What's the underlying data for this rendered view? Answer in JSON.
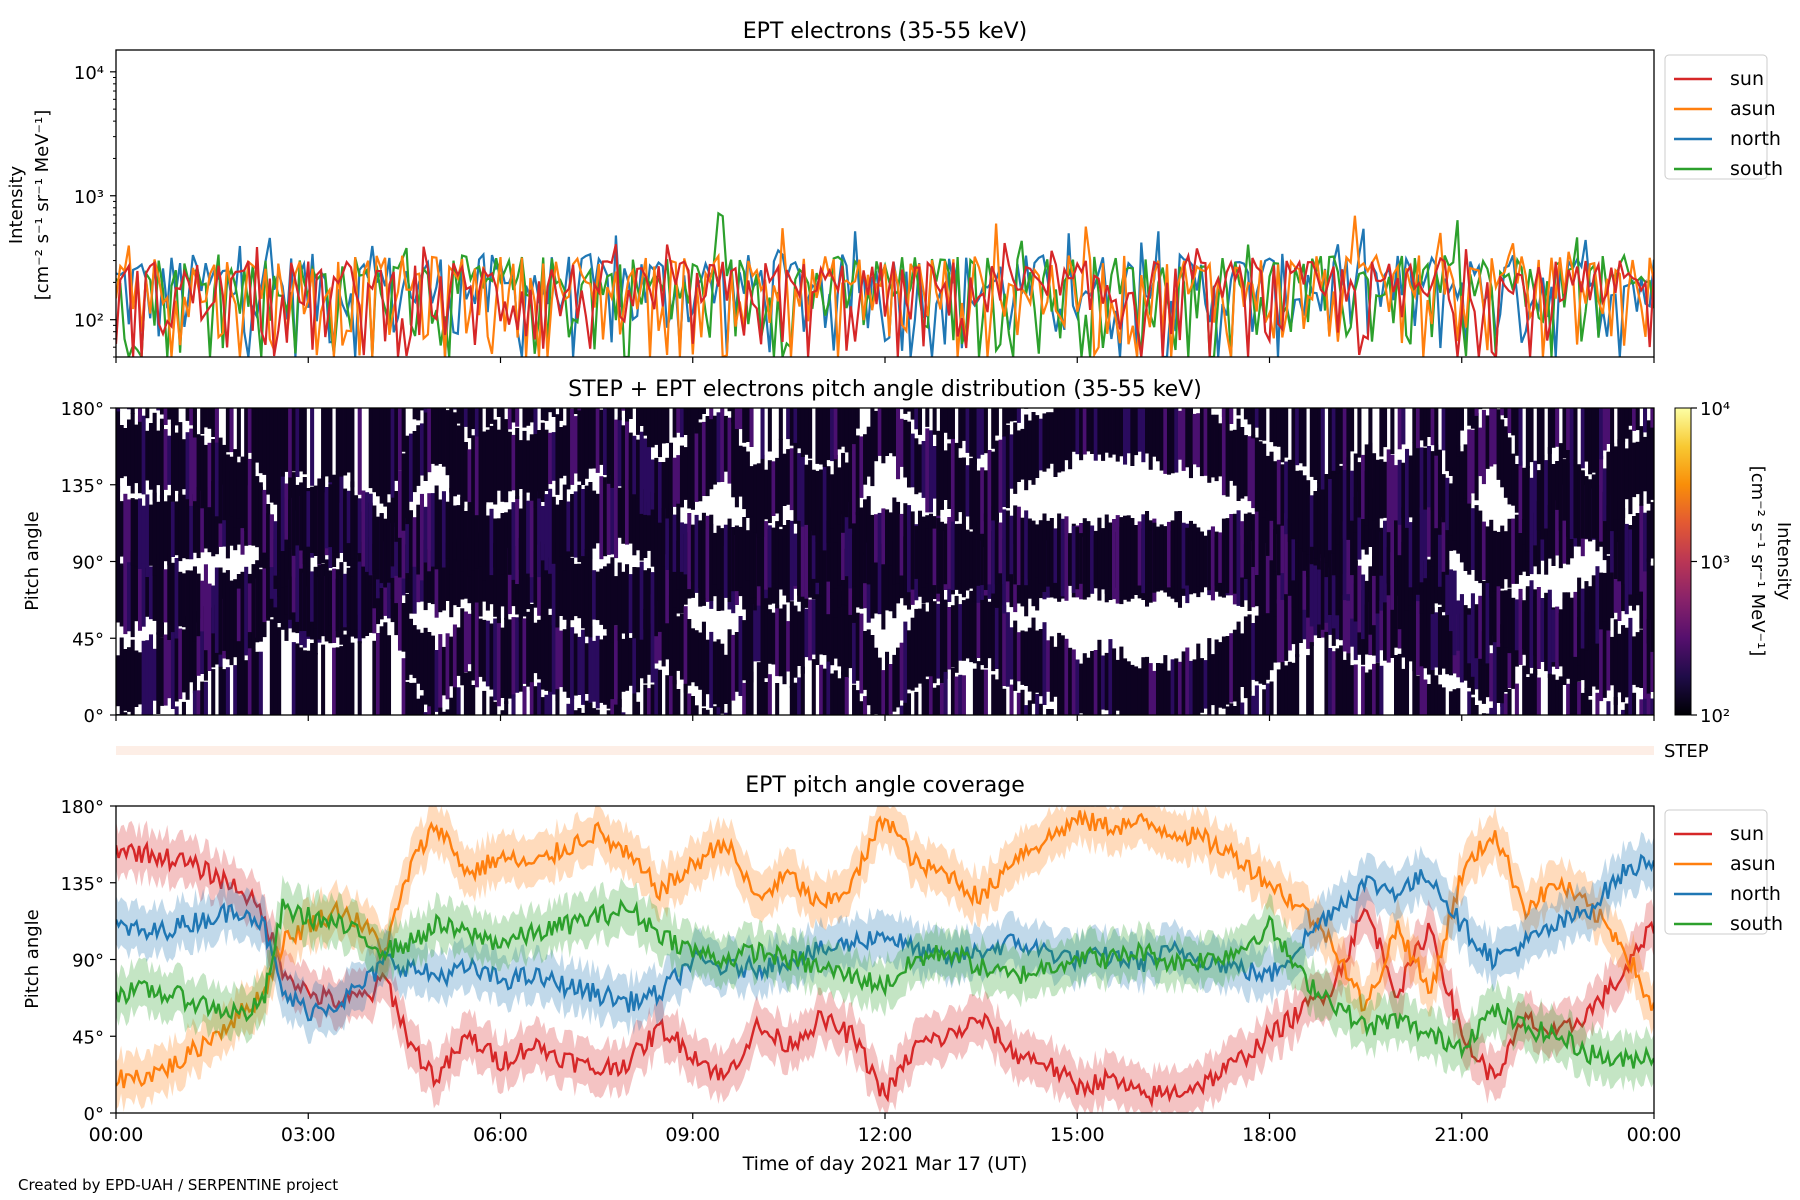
{
  "footer": "Created by EPD-UAH / SERPENTINE project",
  "colors": {
    "sun": "#d62728",
    "asun": "#ff7f0e",
    "north": "#1f77b4",
    "south": "#2ca02c",
    "step_band": "#fdeee6",
    "colormap": [
      "#000004",
      "#1f0c48",
      "#550f6d",
      "#88226a",
      "#ba3655",
      "#e35933",
      "#f98e09",
      "#f8c932",
      "#fcffa4"
    ]
  },
  "chart_data": [
    {
      "type": "line",
      "title": "EPT electrons (35-55 keV)",
      "ylabel": [
        "Intensity",
        "[cm⁻² s⁻¹ sr⁻¹ MeV⁻¹]"
      ],
      "yscale": "log",
      "ylim": [
        50,
        15000
      ],
      "yticks": [
        {
          "value": 100,
          "label": "10²"
        },
        {
          "value": 1000,
          "label": "10³"
        },
        {
          "value": 10000,
          "label": "10⁴"
        }
      ],
      "xlim_hours": [
        0,
        24
      ],
      "legend_position": "outside right, top",
      "series": [
        {
          "name": "sun",
          "color": "#d62728",
          "typical_range": [
            50,
            300
          ],
          "peak": 420
        },
        {
          "name": "asun",
          "color": "#ff7f0e",
          "typical_range": [
            50,
            330
          ],
          "peak": 700
        },
        {
          "name": "north",
          "color": "#1f77b4",
          "typical_range": [
            50,
            340
          ],
          "peak": 550
        },
        {
          "name": "south",
          "color": "#2ca02c",
          "typical_range": [
            50,
            330
          ],
          "peak": 750
        }
      ]
    },
    {
      "type": "heatmap",
      "title": "STEP + EPT electrons pitch angle distribution (35-55 keV)",
      "ylabel": "Pitch angle",
      "ylim": [
        0,
        180
      ],
      "yticks": [
        "0°",
        "45°",
        "90°",
        "135°",
        "180°"
      ],
      "xlim_hours": [
        0,
        24
      ],
      "colorbar": {
        "label": [
          "Intensity",
          "[cm⁻² s⁻¹ sr⁻¹ MeV⁻¹]"
        ],
        "scale": "log",
        "range": [
          100,
          10000
        ],
        "ticks": [
          "10²",
          "10³",
          "10⁴"
        ]
      },
      "value_range": [
        100,
        350
      ]
    },
    {
      "type": "area",
      "title": "",
      "band_label": "STEP",
      "values": []
    },
    {
      "type": "line",
      "title": "EPT pitch angle coverage",
      "ylabel": "Pitch angle",
      "ylim": [
        0,
        180
      ],
      "yticks": [
        "0°",
        "45°",
        "90°",
        "135°",
        "180°"
      ],
      "xlabel": "Time of day 2021 Mar 17 (UT)",
      "xticks": [
        "00:00",
        "03:00",
        "06:00",
        "09:00",
        "12:00",
        "15:00",
        "18:00",
        "21:00",
        "00:00"
      ],
      "xlim_hours": [
        0,
        24
      ],
      "legend_position": "outside right, top",
      "series": [
        {
          "name": "sun",
          "color": "#d62728",
          "x": [
            0,
            0.5,
            1,
            1.5,
            2,
            2.3,
            2.6,
            3,
            3.5,
            4,
            4.2,
            4.6,
            5,
            5.5,
            6,
            6.5,
            7,
            7.5,
            8,
            8.5,
            9,
            9.5,
            10,
            10.5,
            11,
            11.5,
            12,
            12.5,
            13,
            13.5,
            14,
            14.5,
            15,
            15.5,
            16,
            16.5,
            17,
            17.5,
            18,
            18.5,
            19,
            19.5,
            20,
            20.5,
            21,
            21.5,
            22,
            22.5,
            23,
            23.5,
            24
          ],
          "y": [
            155,
            152,
            148,
            140,
            130,
            115,
            85,
            70,
            65,
            70,
            80,
            40,
            20,
            45,
            30,
            40,
            32,
            25,
            30,
            50,
            35,
            20,
            50,
            40,
            55,
            45,
            10,
            40,
            45,
            55,
            35,
            30,
            15,
            20,
            10,
            12,
            18,
            30,
            45,
            60,
            75,
            120,
            70,
            110,
            45,
            20,
            55,
            45,
            60,
            80,
            110
          ]
        },
        {
          "name": "asun",
          "color": "#ff7f0e",
          "x": [
            0,
            0.5,
            1,
            1.5,
            2,
            2.3,
            2.6,
            3,
            3.5,
            4,
            4.2,
            4.6,
            5,
            5.5,
            6,
            6.5,
            7,
            7.5,
            8,
            8.5,
            9,
            9.5,
            10,
            10.5,
            11,
            11.5,
            12,
            12.5,
            13,
            13.5,
            14,
            14.5,
            15,
            15.5,
            16,
            16.5,
            17,
            17.5,
            18,
            18.5,
            19,
            19.5,
            20,
            20.5,
            21,
            21.5,
            22,
            22.5,
            23,
            23.5,
            24
          ],
          "y": [
            20,
            22,
            30,
            45,
            60,
            70,
            100,
            110,
            120,
            105,
            95,
            145,
            170,
            140,
            150,
            145,
            155,
            165,
            150,
            130,
            145,
            160,
            125,
            140,
            120,
            135,
            175,
            145,
            140,
            125,
            150,
            160,
            172,
            168,
            170,
            165,
            160,
            150,
            135,
            120,
            100,
            60,
            110,
            70,
            140,
            165,
            120,
            135,
            120,
            100,
            60
          ]
        },
        {
          "name": "north",
          "color": "#1f77b4",
          "x": [
            0,
            0.5,
            1,
            1.5,
            2,
            2.3,
            2.6,
            3,
            3.5,
            4,
            4.2,
            4.6,
            5,
            5.5,
            6,
            6.5,
            7,
            7.5,
            8,
            8.5,
            9,
            9.5,
            10,
            10.5,
            11,
            11.5,
            12,
            12.5,
            13,
            13.5,
            14,
            14.5,
            15,
            15.5,
            16,
            16.5,
            17,
            17.5,
            18,
            18.5,
            19,
            19.5,
            20,
            20.5,
            21,
            21.5,
            22,
            22.5,
            23,
            23.5,
            24
          ],
          "y": [
            110,
            105,
            110,
            115,
            120,
            110,
            70,
            60,
            65,
            80,
            90,
            85,
            80,
            85,
            78,
            80,
            75,
            70,
            65,
            70,
            90,
            85,
            85,
            90,
            95,
            100,
            105,
            95,
            90,
            95,
            100,
            95,
            90,
            92,
            88,
            95,
            90,
            85,
            80,
            100,
            120,
            135,
            130,
            140,
            110,
            90,
            100,
            110,
            120,
            140,
            150
          ]
        },
        {
          "name": "south",
          "color": "#2ca02c",
          "x": [
            0,
            0.5,
            1,
            1.5,
            2,
            2.3,
            2.6,
            3,
            3.5,
            4,
            4.2,
            4.6,
            5,
            5.5,
            6,
            6.5,
            7,
            7.5,
            8,
            8.5,
            9,
            9.5,
            10,
            10.5,
            11,
            11.5,
            12,
            12.5,
            13,
            13.5,
            14,
            14.5,
            15,
            15.5,
            16,
            16.5,
            17,
            17.5,
            18,
            18.5,
            19,
            19.5,
            20,
            20.5,
            21,
            21.5,
            22,
            22.5,
            23,
            23.5,
            24
          ],
          "y": [
            70,
            72,
            68,
            62,
            58,
            65,
            120,
            115,
            110,
            100,
            95,
            100,
            110,
            105,
            100,
            105,
            110,
            115,
            120,
            105,
            95,
            90,
            95,
            90,
            85,
            80,
            75,
            90,
            95,
            85,
            80,
            85,
            92,
            90,
            95,
            88,
            90,
            95,
            110,
            80,
            65,
            50,
            55,
            45,
            40,
            60,
            50,
            45,
            35,
            30,
            35
          ]
        }
      ]
    }
  ]
}
